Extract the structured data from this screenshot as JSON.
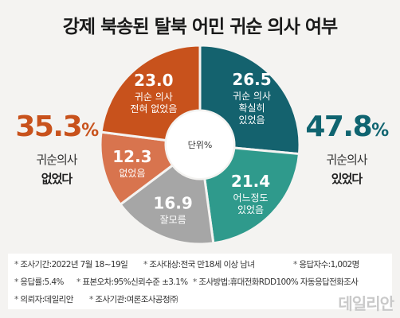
{
  "chart_data": {
    "type": "pie",
    "title": "강제 북송된 탈북 어민 귀순 의사 여부",
    "center_label": "단위%",
    "slices": [
      {
        "value": "26.5",
        "label": [
          "귀순 의사",
          "확실히",
          "있었음"
        ],
        "color": "#14626e"
      },
      {
        "value": "21.4",
        "label": [
          "어느정도",
          "있었음"
        ],
        "color": "#2f9a8c"
      },
      {
        "value": "16.9",
        "label": [
          "잘모름"
        ],
        "color": "#a6a6a6"
      },
      {
        "value": "12.3",
        "label": [
          "없었음"
        ],
        "color": "#d8744e"
      },
      {
        "value": "23.0",
        "label": [
          "귀순 의사",
          "전혀 없었음"
        ],
        "color": "#c8521c"
      }
    ],
    "left_summary": {
      "pct": "35.3",
      "unit": "%",
      "line1": "귀순의사",
      "line2": "없었다"
    },
    "right_summary": {
      "pct": "47.8",
      "unit": "%",
      "line1": "귀순의사",
      "line2": "있었다"
    }
  },
  "notes": [
    "조사기간:2022년 7월 18~19일",
    "조사대상:전국 만18세 이상 남녀",
    "응답자수:1,002명",
    "응답률:5.4%",
    "표본오차:95%신뢰수준 ±3.1%",
    "조사방법:휴대전화RDD100% 자동응답전화조사",
    "의뢰자:데일리안",
    "조사기관:여론조사공정㈜"
  ],
  "watermark": "데일리안"
}
